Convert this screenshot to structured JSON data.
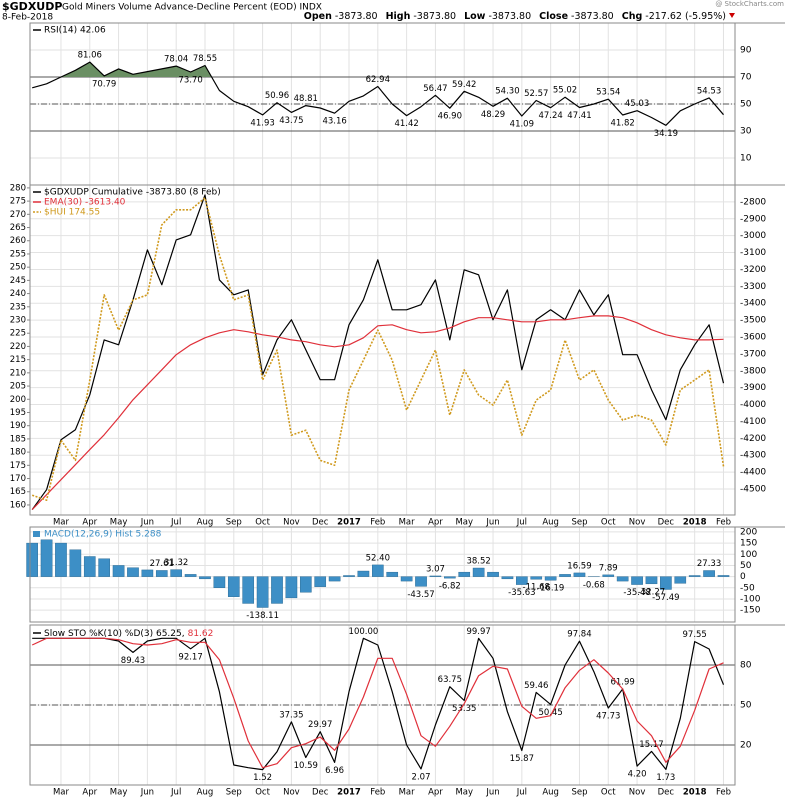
{
  "header": {
    "symbol": "$GDXUDP",
    "description": "Gold Miners Volume Advance-Decline Percent (EOD) INDX",
    "date": "8-Feb-2018",
    "watermark": "@ StockCharts.com",
    "quote": [
      {
        "label": "Open",
        "value": "-3873.80"
      },
      {
        "label": "High",
        "value": "-3873.80"
      },
      {
        "label": "Low",
        "value": "-3873.80"
      },
      {
        "label": "Close",
        "value": "-3873.80"
      },
      {
        "label": "Chg",
        "value": "-217.62 (-5.95%)"
      }
    ]
  },
  "chart_data": [
    {
      "type": "line",
      "xlim": [
        -0.15,
        48.8
      ],
      "ylim": [
        -10,
        110
      ],
      "yticks": [
        10,
        30,
        50,
        70,
        90
      ],
      "levels": [
        {
          "value": 70,
          "style": "solid"
        },
        {
          "value": 50,
          "style": "dashdot"
        },
        {
          "value": 30,
          "style": "solid"
        }
      ],
      "fill_above": 70,
      "fill_color": "#6a8f63",
      "series": [
        {
          "name": "RSI(14) 42.06",
          "color": "#000000",
          "values": [
            62,
            65,
            70,
            75,
            81.06,
            70.79,
            76,
            72,
            74,
            76,
            78.04,
            73.7,
            78.55,
            60,
            52,
            48,
            41.93,
            50.96,
            43.75,
            48.81,
            47,
            43.16,
            52,
            56,
            62.94,
            50,
            41.42,
            48,
            56.47,
            46.9,
            59.42,
            55,
            48.29,
            54.3,
            41.09,
            52.57,
            47.24,
            55.02,
            47.41,
            50,
            53.54,
            41.82,
            45.03,
            40,
            34.19,
            45,
            50,
            54.53,
            42.06
          ],
          "value_labels": [
            null,
            null,
            null,
            null,
            "81.06",
            "70.79",
            null,
            null,
            null,
            null,
            "78.04",
            "73.70",
            "78.55",
            null,
            null,
            null,
            "41.93",
            "50.96",
            "43.75",
            "48.81",
            null,
            "43.16",
            null,
            null,
            "62.94",
            null,
            "41.42",
            null,
            "56.47",
            "46.90",
            "59.42",
            null,
            "48.29",
            "54.30",
            "41.09",
            "52.57",
            "47.24",
            "55.02",
            "47.41",
            null,
            "53.54",
            "41.82",
            "45.03",
            null,
            "34.19",
            null,
            null,
            "54.53",
            null
          ]
        }
      ]
    },
    {
      "type": "line",
      "xlim": [
        -0.15,
        48.8
      ],
      "ylim": [
        156.2,
        281.1
      ],
      "yticks": [
        160,
        165,
        170,
        175,
        180,
        185,
        190,
        195,
        200,
        205,
        210,
        215,
        220,
        225,
        230,
        235,
        240,
        245,
        250,
        255,
        260,
        265,
        270,
        275,
        280
      ],
      "y2lim": [
        -4654,
        -2700
      ],
      "y2ticks": [
        -2800,
        -2900,
        -3000,
        -3100,
        -3200,
        -3300,
        -3400,
        -3500,
        -3600,
        -3700,
        -3800,
        -3900,
        -4000,
        -4100,
        -4200,
        -4300,
        -4400,
        -4500
      ],
      "xticks": [
        {
          "value": 2,
          "label": "Mar"
        },
        {
          "value": 4,
          "label": "Apr"
        },
        {
          "value": 6,
          "label": "May"
        },
        {
          "value": 8,
          "label": "Jun"
        },
        {
          "value": 10,
          "label": "Jul"
        },
        {
          "value": 12,
          "label": "Aug"
        },
        {
          "value": 14,
          "label": "Sep"
        },
        {
          "value": 16,
          "label": "Oct"
        },
        {
          "value": 18,
          "label": "Nov"
        },
        {
          "value": 20,
          "label": "Dec"
        },
        {
          "value": 22,
          "label": "2017"
        },
        {
          "value": 24,
          "label": "Feb"
        },
        {
          "value": 26,
          "label": "Mar"
        },
        {
          "value": 28,
          "label": "Apr"
        },
        {
          "value": 30,
          "label": "May"
        },
        {
          "value": 32,
          "label": "Jun"
        },
        {
          "value": 34,
          "label": "Jul"
        },
        {
          "value": 36,
          "label": "Aug"
        },
        {
          "value": 38,
          "label": "Sep"
        },
        {
          "value": 40,
          "label": "Oct"
        },
        {
          "value": 42,
          "label": "Nov"
        },
        {
          "value": 44,
          "label": "Dec"
        },
        {
          "value": 46,
          "label": "2018"
        },
        {
          "value": 48,
          "label": "Feb"
        }
      ],
      "series": [
        {
          "name": "$GDXUDP Cumulative -3873.80 (8 Feb)",
          "color": "#000000",
          "axis": "y2",
          "values": [
            -4622,
            -4504,
            -4208,
            -4149,
            -3942,
            -3617,
            -3646,
            -3380,
            -3084,
            -3291,
            -3025,
            -2995,
            -2759,
            -3262,
            -3350,
            -3321,
            -3824,
            -3617,
            -3498,
            -3676,
            -3853,
            -3853,
            -3528,
            -3380,
            -3143,
            -3439,
            -3439,
            -3409,
            -3262,
            -3617,
            -3202,
            -3232,
            -3498,
            -3321,
            -3794,
            -3498,
            -3439,
            -3498,
            -3321,
            -3469,
            -3350,
            -3705,
            -3705,
            -3912,
            -4090,
            -3794,
            -3646,
            -3528,
            -3873.8
          ]
        },
        {
          "name": "EMA(30) -3613.40",
          "color": "#e0303a",
          "axis": "y2",
          "values": [
            -4622,
            -4534,
            -4445,
            -4356,
            -4267,
            -4179,
            -4078,
            -3972,
            -3883,
            -3794,
            -3705,
            -3646,
            -3605,
            -3575,
            -3557,
            -3569,
            -3587,
            -3599,
            -3617,
            -3628,
            -3646,
            -3658,
            -3646,
            -3605,
            -3534,
            -3528,
            -3557,
            -3575,
            -3569,
            -3546,
            -3510,
            -3486,
            -3486,
            -3498,
            -3510,
            -3510,
            -3498,
            -3498,
            -3486,
            -3475,
            -3475,
            -3486,
            -3516,
            -3557,
            -3587,
            -3605,
            -3617,
            -3617,
            -3613.4
          ]
        },
        {
          "name": "$HUI 174.55",
          "color": "#d09a1e",
          "dash": "dotted",
          "values": [
            163.7,
            161.8,
            184.5,
            176.9,
            207.3,
            239.5,
            226.2,
            237.6,
            239.5,
            266,
            271.7,
            271.7,
            276.2,
            254.6,
            237.6,
            239.5,
            207.3,
            218.6,
            186.4,
            188.3,
            176.9,
            175,
            203.5,
            214.8,
            226.2,
            214.8,
            195.9,
            207.3,
            218.6,
            194,
            211.1,
            201.6,
            197.8,
            207.3,
            186.4,
            199.7,
            203.5,
            222.4,
            207.3,
            211.1,
            199.7,
            192.1,
            194,
            192.1,
            182.7,
            203.5,
            207.3,
            211.1,
            174.55
          ]
        }
      ]
    },
    {
      "type": "bar",
      "xlim": [
        -0.15,
        48.8
      ],
      "ylim": [
        -203,
        222
      ],
      "yticks": [
        200,
        150,
        100,
        50,
        0,
        -50,
        -100,
        -150
      ],
      "series": [
        {
          "name": "MACD(12,26,9) Hist 5.288",
          "color": "#3d8fc6",
          "values": [
            150,
            165,
            150,
            120,
            90,
            80,
            50,
            40,
            30,
            27.61,
            31.32,
            10,
            -10,
            -50,
            -90,
            -120,
            -138.11,
            -120,
            -95,
            -70,
            -45,
            -20,
            5,
            25,
            52.4,
            20,
            -20,
            -43.57,
            3.07,
            -6.82,
            20,
            38.52,
            20,
            -10,
            -35.63,
            -11.68,
            -16.19,
            10,
            16.59,
            -0.68,
            7.89,
            -20,
            -35.48,
            -32.27,
            -57.49,
            -30,
            5,
            27.33,
            5.288
          ],
          "value_labels": [
            null,
            null,
            null,
            null,
            null,
            null,
            null,
            null,
            null,
            "27.61",
            "31.32",
            null,
            null,
            null,
            null,
            null,
            "-138.11",
            null,
            null,
            null,
            null,
            null,
            null,
            null,
            "52.40",
            null,
            null,
            "-43.57",
            "3.07",
            "-6.82",
            null,
            "38.52",
            null,
            null,
            "-35.63",
            "-11.68",
            "-16.19",
            null,
            "16.59",
            "-0.68",
            "7.89",
            null,
            "-35.48",
            "-32.27",
            "-57.49",
            null,
            null,
            "27.33",
            null
          ]
        }
      ]
    },
    {
      "type": "line",
      "xlim": [
        -0.15,
        48.8
      ],
      "ylim": [
        -10,
        110
      ],
      "yticks": [
        20,
        50,
        80
      ],
      "levels": [
        {
          "value": 80,
          "style": "solid"
        },
        {
          "value": 50,
          "style": "dashdot"
        },
        {
          "value": 20,
          "style": "solid"
        }
      ],
      "legend": "row",
      "series": [
        {
          "name": "Slow STO %K(10) %D(3) 65.25,",
          "color": "#000000",
          "values": [
            100,
            100,
            100,
            100,
            100,
            100,
            98,
            89.43,
            98,
            100,
            100,
            92.17,
            100,
            60,
            5,
            3,
            1.52,
            15,
            37.35,
            10.59,
            29.97,
            6.96,
            60,
            100,
            95,
            60,
            20,
            2.07,
            35,
            63.75,
            53.35,
            99.97,
            85,
            45,
            15.87,
            59.46,
            50.45,
            80,
            97.84,
            75,
            47.73,
            61.99,
            4.2,
            15.17,
            1.73,
            40,
            97.55,
            92,
            65.25
          ],
          "value_labels": [
            null,
            null,
            null,
            null,
            null,
            null,
            null,
            "89.43",
            null,
            null,
            null,
            "92.17",
            null,
            null,
            null,
            null,
            "1.52",
            null,
            "37.35",
            "10.59",
            "29.97",
            "6.96",
            null,
            "100.00",
            null,
            null,
            null,
            "2.07",
            null,
            "63.75",
            "53.35",
            "99.97",
            null,
            null,
            "15.87",
            "59.46",
            "50.45",
            null,
            "97.84",
            null,
            "47.73",
            "61.99",
            "4.20",
            "15.17",
            "1.73",
            null,
            "97.55",
            null,
            null
          ]
        },
        {
          "name": "81.62",
          "color": "#e0303a",
          "values": [
            95,
            100,
            100,
            100,
            100,
            100,
            99,
            96,
            95,
            96,
            99,
            97,
            97,
            84,
            55,
            23,
            3,
            6,
            18,
            21,
            26,
            16,
            32,
            56,
            85,
            85,
            58,
            27,
            19,
            34,
            51,
            72,
            79,
            77,
            49,
            40,
            42,
            63,
            76,
            84,
            74,
            62,
            38,
            27,
            7,
            19,
            46,
            77,
            81.62
          ]
        }
      ]
    }
  ]
}
